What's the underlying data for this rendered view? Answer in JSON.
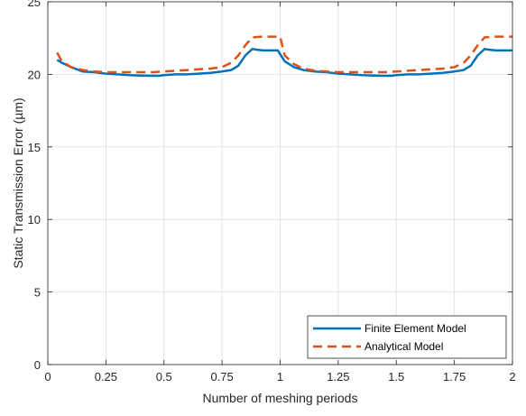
{
  "chart_data": {
    "type": "line",
    "xlabel": "Number of meshing periods",
    "ylabel": "Static Transmission Error (µm)",
    "xlim": [
      0,
      2
    ],
    "ylim": [
      0,
      25
    ],
    "xticks": [
      0,
      0.25,
      0.5,
      0.75,
      1,
      1.25,
      1.5,
      1.75,
      2
    ],
    "xtick_labels": [
      "0",
      "0.25",
      "0.5",
      "0.75",
      "1",
      "1.25",
      "1.5",
      "1.75",
      "2"
    ],
    "yticks": [
      0,
      5,
      10,
      15,
      20,
      25
    ],
    "ytick_labels": [
      "0",
      "5",
      "10",
      "15",
      "20",
      "25"
    ],
    "grid": true,
    "legend_position": "bottom-right",
    "series": [
      {
        "name": "Finite Element Model",
        "color": "#0072BD",
        "style": "solid",
        "x": [
          0.04,
          0.06,
          0.1,
          0.15,
          0.2,
          0.25,
          0.3,
          0.35,
          0.4,
          0.45,
          0.48,
          0.5,
          0.55,
          0.6,
          0.65,
          0.7,
          0.75,
          0.79,
          0.82,
          0.85,
          0.88,
          0.9,
          0.93,
          0.96,
          0.99,
          1.02,
          1.06,
          1.1,
          1.15,
          1.2,
          1.25,
          1.3,
          1.35,
          1.4,
          1.45,
          1.48,
          1.5,
          1.55,
          1.6,
          1.65,
          1.7,
          1.75,
          1.79,
          1.82,
          1.85,
          1.88,
          1.9,
          1.93,
          1.96,
          1.99,
          2.0
        ],
        "y": [
          21.0,
          20.8,
          20.5,
          20.2,
          20.15,
          20.05,
          20.0,
          19.95,
          19.92,
          19.9,
          19.9,
          19.95,
          20.0,
          20.0,
          20.05,
          20.1,
          20.2,
          20.3,
          20.6,
          21.3,
          21.75,
          21.7,
          21.65,
          21.65,
          21.65,
          20.9,
          20.5,
          20.3,
          20.2,
          20.15,
          20.05,
          20.0,
          19.95,
          19.92,
          19.9,
          19.9,
          19.95,
          20.0,
          20.0,
          20.05,
          20.1,
          20.2,
          20.3,
          20.6,
          21.3,
          21.75,
          21.7,
          21.65,
          21.65,
          21.65,
          21.65
        ]
      },
      {
        "name": "Analytical Model",
        "color": "#D95319",
        "style": "dashed",
        "x": [
          0.04,
          0.06,
          0.1,
          0.15,
          0.2,
          0.25,
          0.3,
          0.35,
          0.4,
          0.45,
          0.5,
          0.55,
          0.6,
          0.65,
          0.7,
          0.75,
          0.79,
          0.82,
          0.85,
          0.88,
          0.92,
          0.96,
          1.0,
          1.02,
          1.06,
          1.1,
          1.15,
          1.2,
          1.25,
          1.3,
          1.35,
          1.4,
          1.45,
          1.5,
          1.55,
          1.6,
          1.65,
          1.7,
          1.75,
          1.79,
          1.82,
          1.85,
          1.88,
          1.92,
          1.96,
          2.0
        ],
        "y": [
          21.5,
          20.9,
          20.5,
          20.3,
          20.2,
          20.15,
          20.15,
          20.15,
          20.15,
          20.15,
          20.2,
          20.25,
          20.3,
          20.35,
          20.4,
          20.5,
          20.8,
          21.3,
          22.0,
          22.55,
          22.6,
          22.6,
          22.6,
          21.3,
          20.7,
          20.4,
          20.25,
          20.2,
          20.15,
          20.15,
          20.15,
          20.15,
          20.15,
          20.2,
          20.25,
          20.3,
          20.35,
          20.4,
          20.5,
          20.8,
          21.3,
          22.0,
          22.55,
          22.6,
          22.6,
          22.6
        ]
      }
    ]
  }
}
